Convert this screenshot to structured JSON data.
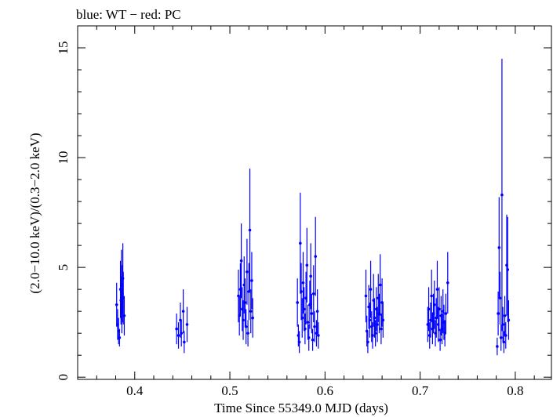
{
  "chart_data": {
    "type": "scatter",
    "title": "blue: WT − red: PC",
    "xlabel": "Time Since 55349.0 MJD (days)",
    "ylabel": "(2.0−10.0 keV)/(0.3−2.0 keV)",
    "xlim": [
      0.34,
      0.838
    ],
    "ylim": [
      -0.1,
      16.0
    ],
    "x_ticks": [
      0.4,
      0.5,
      0.6,
      0.7,
      0.8
    ],
    "x_tick_labels": [
      "0.4",
      "0.5",
      "0.6",
      "0.7",
      "0.8"
    ],
    "y_ticks": [
      0,
      5,
      10,
      15
    ],
    "y_tick_labels": [
      "0",
      "5",
      "10",
      "15"
    ],
    "grid": false,
    "series": [
      {
        "color": "#0000ff",
        "points": [
          {
            "x": 0.381,
            "y": 3.3,
            "err": 1.0
          },
          {
            "x": 0.382,
            "y": 2.4,
            "err": 0.7
          },
          {
            "x": 0.383,
            "y": 2.1,
            "err": 0.6
          },
          {
            "x": 0.384,
            "y": 1.8,
            "err": 0.4
          },
          {
            "x": 0.385,
            "y": 4.0,
            "err": 1.3
          },
          {
            "x": 0.3855,
            "y": 3.5,
            "err": 1.1
          },
          {
            "x": 0.386,
            "y": 4.2,
            "err": 1.6
          },
          {
            "x": 0.3865,
            "y": 3.0,
            "err": 1.0
          },
          {
            "x": 0.387,
            "y": 3.8,
            "err": 1.3
          },
          {
            "x": 0.3875,
            "y": 4.5,
            "err": 1.6
          },
          {
            "x": 0.388,
            "y": 3.6,
            "err": 1.2
          },
          {
            "x": 0.389,
            "y": 2.8,
            "err": 0.9
          },
          {
            "x": 0.444,
            "y": 2.2,
            "err": 0.7
          },
          {
            "x": 0.446,
            "y": 1.9,
            "err": 0.6
          },
          {
            "x": 0.448,
            "y": 2.6,
            "err": 0.8
          },
          {
            "x": 0.449,
            "y": 2.0,
            "err": 0.6
          },
          {
            "x": 0.451,
            "y": 3.0,
            "err": 1.0
          },
          {
            "x": 0.452,
            "y": 1.6,
            "err": 0.5
          },
          {
            "x": 0.455,
            "y": 2.4,
            "err": 0.8
          },
          {
            "x": 0.509,
            "y": 3.7,
            "err": 1.2
          },
          {
            "x": 0.51,
            "y": 2.8,
            "err": 0.9
          },
          {
            "x": 0.511,
            "y": 4.0,
            "err": 1.2
          },
          {
            "x": 0.512,
            "y": 5.3,
            "err": 1.7
          },
          {
            "x": 0.513,
            "y": 3.1,
            "err": 1.0
          },
          {
            "x": 0.514,
            "y": 2.6,
            "err": 0.9
          },
          {
            "x": 0.515,
            "y": 4.2,
            "err": 1.3
          },
          {
            "x": 0.516,
            "y": 3.4,
            "err": 1.1
          },
          {
            "x": 0.517,
            "y": 2.3,
            "err": 0.8
          },
          {
            "x": 0.518,
            "y": 4.8,
            "err": 1.5
          },
          {
            "x": 0.519,
            "y": 2.0,
            "err": 0.6
          },
          {
            "x": 0.52,
            "y": 3.9,
            "err": 1.3
          },
          {
            "x": 0.521,
            "y": 6.7,
            "err": 2.8
          },
          {
            "x": 0.522,
            "y": 3.0,
            "err": 1.0
          },
          {
            "x": 0.523,
            "y": 4.4,
            "err": 1.3
          },
          {
            "x": 0.524,
            "y": 2.7,
            "err": 0.9
          },
          {
            "x": 0.571,
            "y": 3.4,
            "err": 1.1
          },
          {
            "x": 0.572,
            "y": 1.9,
            "err": 0.5
          },
          {
            "x": 0.573,
            "y": 1.6,
            "err": 0.5
          },
          {
            "x": 0.574,
            "y": 6.1,
            "err": 2.3
          },
          {
            "x": 0.575,
            "y": 3.9,
            "err": 1.3
          },
          {
            "x": 0.576,
            "y": 2.7,
            "err": 0.9
          },
          {
            "x": 0.577,
            "y": 4.3,
            "err": 1.4
          },
          {
            "x": 0.578,
            "y": 3.1,
            "err": 1.0
          },
          {
            "x": 0.579,
            "y": 2.2,
            "err": 0.7
          },
          {
            "x": 0.58,
            "y": 3.6,
            "err": 1.2
          },
          {
            "x": 0.581,
            "y": 5.1,
            "err": 1.7
          },
          {
            "x": 0.582,
            "y": 2.5,
            "err": 0.8
          },
          {
            "x": 0.583,
            "y": 1.8,
            "err": 0.6
          },
          {
            "x": 0.584,
            "y": 3.3,
            "err": 1.1
          },
          {
            "x": 0.585,
            "y": 4.6,
            "err": 1.5
          },
          {
            "x": 0.586,
            "y": 2.9,
            "err": 0.9
          },
          {
            "x": 0.587,
            "y": 1.7,
            "err": 0.5
          },
          {
            "x": 0.588,
            "y": 3.8,
            "err": 1.3
          },
          {
            "x": 0.589,
            "y": 2.3,
            "err": 0.7
          },
          {
            "x": 0.59,
            "y": 5.5,
            "err": 1.8
          },
          {
            "x": 0.591,
            "y": 2.0,
            "err": 0.6
          },
          {
            "x": 0.592,
            "y": 3.0,
            "err": 1.0
          },
          {
            "x": 0.593,
            "y": 1.9,
            "err": 0.6
          },
          {
            "x": 0.643,
            "y": 3.7,
            "err": 1.2
          },
          {
            "x": 0.644,
            "y": 2.1,
            "err": 0.7
          },
          {
            "x": 0.645,
            "y": 1.6,
            "err": 0.5
          },
          {
            "x": 0.646,
            "y": 3.2,
            "err": 1.0
          },
          {
            "x": 0.647,
            "y": 2.6,
            "err": 0.8
          },
          {
            "x": 0.648,
            "y": 4.0,
            "err": 1.3
          },
          {
            "x": 0.649,
            "y": 2.3,
            "err": 0.7
          },
          {
            "x": 0.65,
            "y": 1.9,
            "err": 0.6
          },
          {
            "x": 0.651,
            "y": 3.5,
            "err": 1.2
          },
          {
            "x": 0.652,
            "y": 2.7,
            "err": 0.9
          },
          {
            "x": 0.653,
            "y": 2.0,
            "err": 0.6
          },
          {
            "x": 0.654,
            "y": 3.1,
            "err": 1.0
          },
          {
            "x": 0.655,
            "y": 2.4,
            "err": 0.8
          },
          {
            "x": 0.656,
            "y": 3.6,
            "err": 1.1
          },
          {
            "x": 0.657,
            "y": 2.9,
            "err": 0.9
          },
          {
            "x": 0.658,
            "y": 4.2,
            "err": 1.4
          },
          {
            "x": 0.659,
            "y": 2.2,
            "err": 0.7
          },
          {
            "x": 0.66,
            "y": 3.4,
            "err": 1.1
          },
          {
            "x": 0.661,
            "y": 2.6,
            "err": 0.8
          },
          {
            "x": 0.708,
            "y": 2.4,
            "err": 0.8
          },
          {
            "x": 0.709,
            "y": 3.1,
            "err": 1.0
          },
          {
            "x": 0.71,
            "y": 1.9,
            "err": 0.6
          },
          {
            "x": 0.711,
            "y": 2.6,
            "err": 0.8
          },
          {
            "x": 0.712,
            "y": 3.7,
            "err": 1.2
          },
          {
            "x": 0.713,
            "y": 2.2,
            "err": 0.7
          },
          {
            "x": 0.714,
            "y": 2.9,
            "err": 0.9
          },
          {
            "x": 0.715,
            "y": 3.3,
            "err": 1.1
          },
          {
            "x": 0.716,
            "y": 2.0,
            "err": 0.6
          },
          {
            "x": 0.717,
            "y": 2.7,
            "err": 0.9
          },
          {
            "x": 0.718,
            "y": 4.0,
            "err": 1.3
          },
          {
            "x": 0.719,
            "y": 2.4,
            "err": 0.8
          },
          {
            "x": 0.72,
            "y": 3.1,
            "err": 1.0
          },
          {
            "x": 0.721,
            "y": 1.7,
            "err": 0.5
          },
          {
            "x": 0.722,
            "y": 2.8,
            "err": 0.9
          },
          {
            "x": 0.723,
            "y": 2.2,
            "err": 0.7
          },
          {
            "x": 0.724,
            "y": 3.0,
            "err": 1.0
          },
          {
            "x": 0.725,
            "y": 2.5,
            "err": 0.8
          },
          {
            "x": 0.726,
            "y": 2.0,
            "err": 0.6
          },
          {
            "x": 0.727,
            "y": 2.9,
            "err": 0.9
          },
          {
            "x": 0.729,
            "y": 4.3,
            "err": 1.4
          },
          {
            "x": 0.781,
            "y": 1.4,
            "err": 0.4
          },
          {
            "x": 0.782,
            "y": 2.9,
            "err": 1.0
          },
          {
            "x": 0.783,
            "y": 5.9,
            "err": 2.3
          },
          {
            "x": 0.784,
            "y": 3.6,
            "err": 1.2
          },
          {
            "x": 0.785,
            "y": 1.8,
            "err": 0.6
          },
          {
            "x": 0.786,
            "y": 8.3,
            "err": 6.2
          },
          {
            "x": 0.787,
            "y": 2.4,
            "err": 0.8
          },
          {
            "x": 0.788,
            "y": 1.6,
            "err": 0.5
          },
          {
            "x": 0.789,
            "y": 2.8,
            "err": 0.9
          },
          {
            "x": 0.79,
            "y": 1.9,
            "err": 0.6
          },
          {
            "x": 0.791,
            "y": 5.1,
            "err": 2.3
          },
          {
            "x": 0.792,
            "y": 4.9,
            "err": 2.4
          },
          {
            "x": 0.793,
            "y": 2.6,
            "err": 0.9
          }
        ]
      }
    ]
  }
}
